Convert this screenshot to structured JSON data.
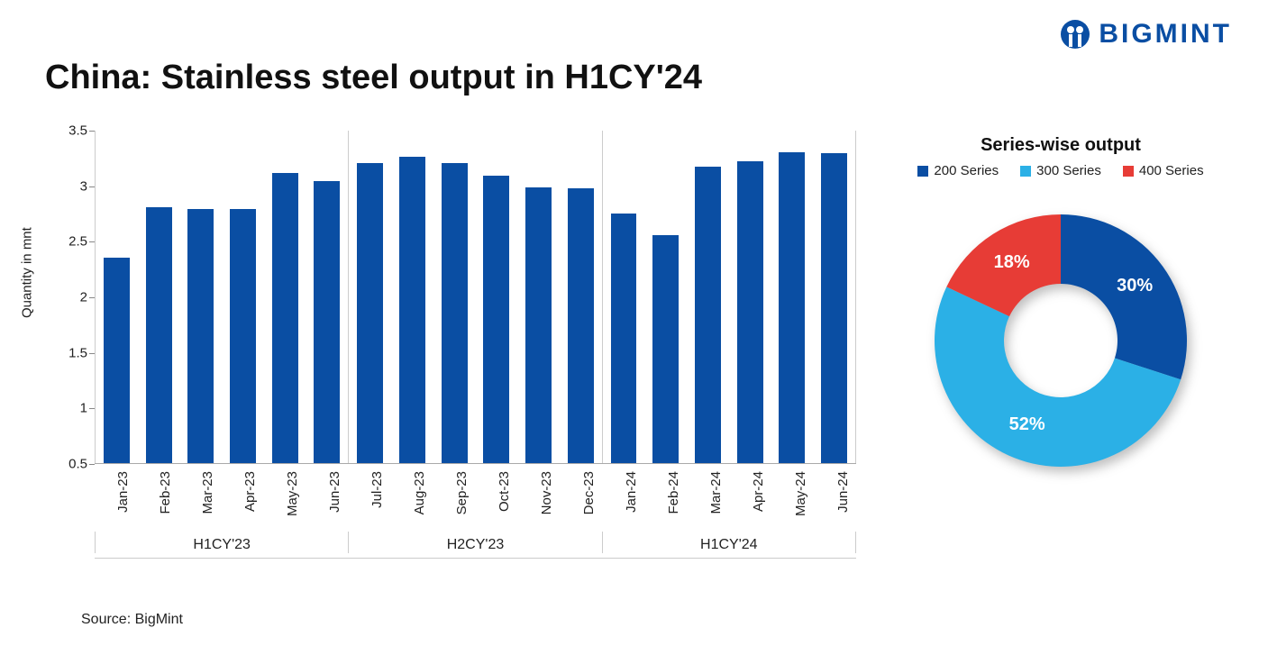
{
  "brand": {
    "name": "BIGMINT",
    "color": "#0a4ea3"
  },
  "title": "China: Stainless steel output in H1CY'24",
  "source": "Source: BigMint",
  "bar_chart": {
    "type": "bar",
    "ylabel": "Quantity in mnt",
    "ylim": [
      0.5,
      3.5
    ],
    "ytick_step": 0.5,
    "bar_color": "#0a4ea3",
    "axis_color": "#aaaaaa",
    "label_fontsize": 15,
    "groups": [
      {
        "label": "H1CY'23",
        "bars": [
          {
            "label": "Jan-23",
            "value": 2.35
          },
          {
            "label": "Feb-23",
            "value": 2.8
          },
          {
            "label": "Mar-23",
            "value": 2.79
          },
          {
            "label": "Apr-23",
            "value": 2.79
          },
          {
            "label": "May-23",
            "value": 3.11
          },
          {
            "label": "Jun-23",
            "value": 3.04
          }
        ]
      },
      {
        "label": "H2CY'23",
        "bars": [
          {
            "label": "Jul-23",
            "value": 3.2
          },
          {
            "label": "Aug-23",
            "value": 3.26
          },
          {
            "label": "Sep-23",
            "value": 3.2
          },
          {
            "label": "Oct-23",
            "value": 3.09
          },
          {
            "label": "Nov-23",
            "value": 2.98
          },
          {
            "label": "Dec-23",
            "value": 2.97
          }
        ]
      },
      {
        "label": "H1CY'24",
        "bars": [
          {
            "label": "Jan-24",
            "value": 2.75
          },
          {
            "label": "Feb-24",
            "value": 2.55
          },
          {
            "label": "Mar-24",
            "value": 3.17
          },
          {
            "label": "Apr-24",
            "value": 3.22
          },
          {
            "label": "May-24",
            "value": 3.3
          },
          {
            "label": "Jun-24",
            "value": 3.29
          }
        ]
      }
    ]
  },
  "pie_chart": {
    "type": "donut",
    "title": "Series-wise output",
    "inner_radius_ratio": 0.45,
    "label_fontsize": 20,
    "label_color": "#ffffff",
    "slices": [
      {
        "label": "200 Series",
        "pct": 30,
        "display": "30%",
        "color": "#0a4ea3"
      },
      {
        "label": "300 Series",
        "pct": 52,
        "display": "52%",
        "color": "#2bb0e6"
      },
      {
        "label": "400 Series",
        "pct": 18,
        "display": "18%",
        "color": "#e73c36"
      }
    ]
  }
}
